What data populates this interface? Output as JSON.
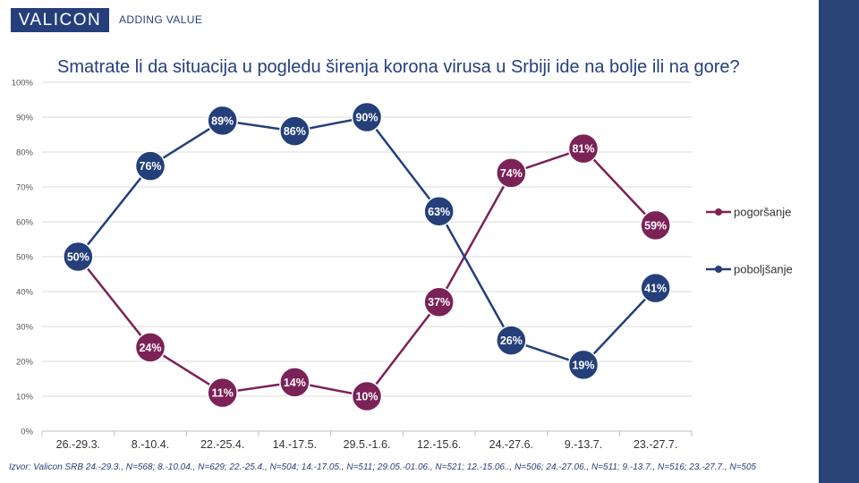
{
  "header": {
    "logo_text": "VALICON",
    "tagline": "ADDING VALUE",
    "brand_color": "#243f7a"
  },
  "chart_data": {
    "type": "line",
    "title": "Smatrate li da situacija u pogledu širenja korona virusa u Srbiji ide na bolje ili na gore?",
    "categories": [
      "26.-29.3.",
      "8.-10.4.",
      "22.-25.4.",
      "14.-17.5.",
      "29.5.-1.6.",
      "12.-15.6.",
      "24.-27.6.",
      "9.-13.7.",
      "23.-27.7."
    ],
    "series": [
      {
        "name": "pogoršanje",
        "color": "#7b2257",
        "values": [
          50,
          24,
          11,
          14,
          10,
          37,
          74,
          81,
          59
        ]
      },
      {
        "name": "poboljšanje",
        "color": "#243f7a",
        "values": [
          50,
          76,
          89,
          86,
          90,
          63,
          26,
          19,
          41
        ]
      }
    ],
    "ylim": [
      0,
      100
    ],
    "yticks": [
      "0%",
      "10%",
      "20%",
      "30%",
      "40%",
      "50%",
      "60%",
      "70%",
      "80%",
      "90%",
      "100%"
    ],
    "grid": true,
    "legend_position": "right",
    "data_labels": true,
    "value_suffix": "%"
  },
  "source_note": "Izvor: Valicon SRB 24.-29.3., N=568; 8.-10.04., N=629; 22.-25.4., N=504; 14.-17.05., N=511; 29.05.-01.06., N=521; 12.-15.06.., N=506; 24.-27.06., N=511; 9.-13.7., N=516; 23.-27.7., N=505"
}
